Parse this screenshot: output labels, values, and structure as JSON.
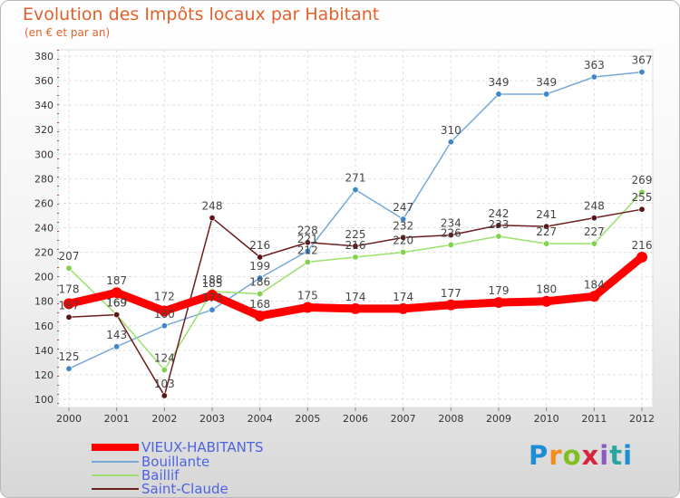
{
  "title": "Evolution des Impôts locaux par Habitant",
  "subtitle": "(en € et par an)",
  "brand": "Proxiti",
  "chart_data": {
    "type": "line",
    "title": "Evolution des Impôts locaux par Habitant",
    "subtitle": "(en € et par an)",
    "xlabel": "",
    "ylabel": "",
    "x": [
      "2000",
      "2001",
      "2002",
      "2003",
      "2004",
      "2005",
      "2006",
      "2007",
      "2008",
      "2009",
      "2010",
      "2011",
      "2012"
    ],
    "ylim": [
      100,
      380
    ],
    "yticks": [
      100,
      120,
      140,
      160,
      180,
      200,
      220,
      240,
      260,
      280,
      300,
      320,
      340,
      360,
      380
    ],
    "grid": true,
    "legend_position": "bottom-left",
    "series": [
      {
        "name": "VIEUX-HABITANTS",
        "color": "#ff0000",
        "values": [
          178,
          187,
          172,
          185,
          168,
          175,
          174,
          174,
          177,
          179,
          180,
          184,
          216
        ]
      },
      {
        "name": "Bouillante",
        "color": "#77a7d8",
        "values": [
          125,
          143,
          160,
          173,
          199,
          221,
          271,
          247,
          310,
          349,
          349,
          363,
          367
        ]
      },
      {
        "name": "Baillif",
        "color": "#9ae16b",
        "values": [
          207,
          169,
          124,
          188,
          186,
          212,
          216,
          220,
          226,
          233,
          227,
          227,
          269
        ]
      },
      {
        "name": "Saint-Claude",
        "color": "#6b1e1e",
        "values": [
          167,
          169,
          103,
          248,
          216,
          228,
          225,
          232,
          234,
          242,
          241,
          248,
          255
        ]
      }
    ]
  }
}
